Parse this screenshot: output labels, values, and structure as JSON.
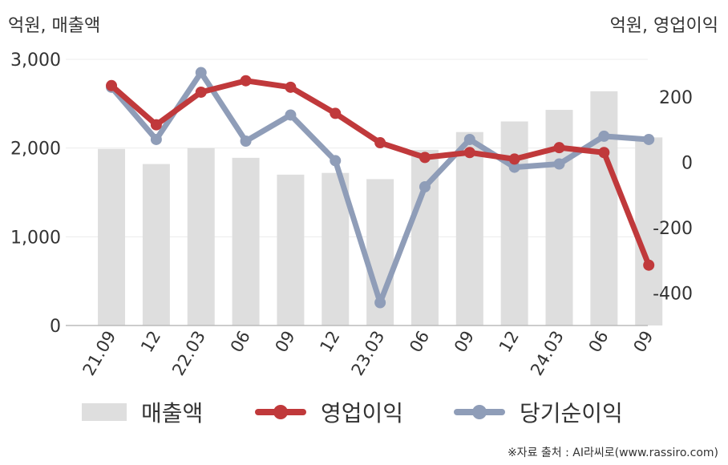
{
  "units": {
    "left": "억원, 매출액",
    "right": "억원, 영업이익"
  },
  "source": "※자료 출처 : AI라씨로(www.rassiro.com)",
  "chart_data": {
    "type": "bar+line",
    "categories": [
      "21.09",
      "12",
      "22.03",
      "06",
      "09",
      "12",
      "23.03",
      "06",
      "09",
      "12",
      "24.03",
      "06",
      "09"
    ],
    "y_left": {
      "ticks": [
        0,
        1000,
        2000,
        3000
      ],
      "tick_labels": [
        "0",
        "1,000",
        "2,000",
        "3,000"
      ],
      "range": [
        0,
        3000
      ]
    },
    "y_right": {
      "ticks": [
        -400,
        -200,
        0,
        200
      ],
      "tick_labels": [
        "-400",
        "-200",
        "0",
        "200"
      ],
      "range": [
        -500,
        350
      ]
    },
    "grid": true,
    "legend_position": "bottom",
    "series": [
      {
        "name": "매출액",
        "kind": "bar",
        "axis": "left",
        "color": "#dedede",
        "values": [
          1990,
          1820,
          2000,
          1890,
          1700,
          1720,
          1650,
          1980,
          2180,
          2300,
          2430,
          2640,
          2120
        ]
      },
      {
        "name": "영업이익",
        "kind": "line",
        "axis": "right",
        "color": "#c0393b",
        "values": [
          235,
          115,
          215,
          250,
          230,
          150,
          60,
          15,
          30,
          10,
          45,
          30,
          -315
        ]
      },
      {
        "name": "당기순이익",
        "kind": "line",
        "axis": "right",
        "color": "#8f9db8",
        "values": [
          230,
          70,
          275,
          65,
          145,
          5,
          -430,
          -75,
          70,
          -15,
          -5,
          80,
          70
        ]
      }
    ]
  }
}
